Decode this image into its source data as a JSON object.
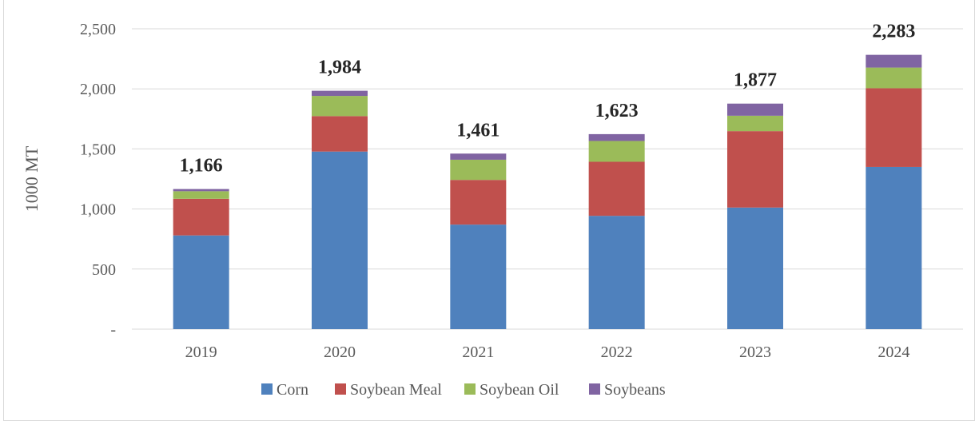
{
  "chart_data": {
    "type": "bar",
    "stacked": true,
    "title": "",
    "xlabel": "",
    "ylabel": "1000 MT",
    "categories": [
      "2019",
      "2020",
      "2021",
      "2022",
      "2023",
      "2024"
    ],
    "series": [
      {
        "name": "Corn",
        "color": "#4f81bd",
        "values": [
          780,
          1478,
          870,
          943,
          1012,
          1350
        ]
      },
      {
        "name": "Soybean Meal",
        "color": "#c0504d",
        "values": [
          305,
          295,
          372,
          450,
          636,
          655
        ]
      },
      {
        "name": "Soybean Oil",
        "color": "#9bbb59",
        "values": [
          63,
          168,
          168,
          173,
          128,
          172
        ]
      },
      {
        "name": "Soybeans",
        "color": "#8064a2",
        "values": [
          18,
          43,
          51,
          57,
          101,
          106
        ]
      }
    ],
    "totals": [
      "1,166",
      "1,984",
      "1,461",
      "1,623",
      "1,877",
      "2,283"
    ],
    "ylim": [
      0,
      2500
    ],
    "yticks": [
      "-",
      "500",
      "1,000",
      "1,500",
      "2,000",
      "2,500"
    ],
    "ytick_values": [
      0,
      500,
      1000,
      1500,
      2000,
      2500
    ],
    "grid": true,
    "legend_position": "bottom"
  }
}
